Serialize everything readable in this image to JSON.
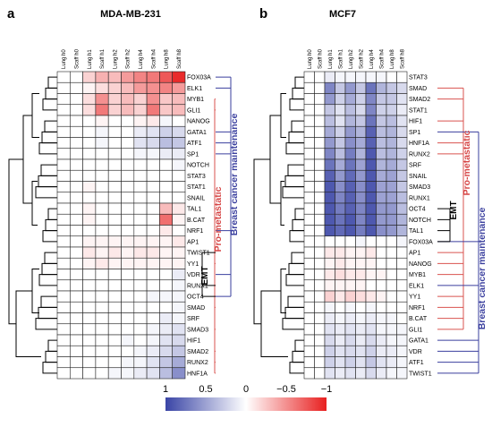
{
  "panels": {
    "a": {
      "letter": "a",
      "title": "MDA-MB-231"
    },
    "b": {
      "letter": "b",
      "title": "MCF7"
    }
  },
  "annotations": {
    "pro_metastatic": "Pro-metastatic",
    "breast_cancer_maintenance": "Breast cancer maintenance",
    "emt": "EMT"
  },
  "colors": {
    "positive": "#3a45a6",
    "neutral": "#ffffff",
    "negative": "#e82020",
    "line_red": "#d9534f",
    "line_blue": "#3a3f9e"
  },
  "colorbar": {
    "ticks": [
      "1",
      "0.5",
      "0",
      "−0.5",
      "−1"
    ],
    "vmin": -1,
    "vmax": 1
  },
  "chart_data": [
    {
      "type": "heatmap",
      "title": "MDA-MB-231",
      "columns": [
        "Lung h0",
        "Scaff h0",
        "Lung h1",
        "Scaff h1",
        "Lung h2",
        "Scaff h2",
        "Lung h4",
        "Scaff h4",
        "Lung h8",
        "Scaff h8"
      ],
      "rows": [
        "FOX03A",
        "ELK1",
        "MYB1",
        "GLI1",
        "NANOG",
        "GATA1",
        "ATF1",
        "SP1",
        "NOTCH",
        "STAT3",
        "STAT1",
        "SNAIL",
        "TAL1",
        "B.CAT",
        "NRF1",
        "AP1",
        "TWIST1",
        "YY1",
        "VDR",
        "RUNX1",
        "OCT4",
        "SMAD",
        "SRF",
        "SMAD3",
        "HIF1",
        "SMAD2",
        "RUNX2",
        "HNF1A"
      ],
      "values": [
        [
          0,
          0,
          -0.2,
          -0.35,
          -0.3,
          -0.45,
          -0.55,
          -0.6,
          -0.75,
          -0.95
        ],
        [
          0,
          0,
          -0.05,
          -0.15,
          -0.2,
          -0.3,
          -0.45,
          -0.5,
          -0.55,
          -0.45
        ],
        [
          0,
          0,
          -0.15,
          -0.5,
          -0.2,
          -0.3,
          -0.2,
          -0.5,
          -0.25,
          -0.3
        ],
        [
          0,
          0,
          -0.15,
          -0.6,
          -0.2,
          -0.3,
          -0.2,
          -0.6,
          -0.25,
          -0.3
        ],
        [
          0,
          0,
          0,
          -0.05,
          0,
          0,
          -0.05,
          -0.1,
          0.05,
          0
        ],
        [
          0,
          0,
          0,
          0.05,
          0,
          0,
          0.1,
          0.15,
          0.25,
          0.2
        ],
        [
          0,
          0,
          0,
          0.05,
          0,
          0,
          0.15,
          0.2,
          0.35,
          0.3
        ],
        [
          0,
          0,
          0,
          0,
          0,
          0,
          0.05,
          0.05,
          0.1,
          0.1
        ],
        [
          0,
          0,
          0,
          0,
          0,
          0,
          0,
          0,
          0,
          0.05
        ],
        [
          0,
          0,
          0,
          0,
          0,
          0,
          0,
          0,
          0,
          0
        ],
        [
          0,
          0,
          -0.05,
          0,
          0,
          0,
          0,
          0,
          0,
          0
        ],
        [
          0,
          0,
          0,
          0,
          0,
          0,
          0,
          0,
          0,
          0
        ],
        [
          0,
          0,
          -0.05,
          0,
          0,
          0,
          0,
          0,
          -0.3,
          -0.1
        ],
        [
          0,
          0,
          -0.05,
          0,
          0,
          0,
          0,
          0,
          -0.65,
          -0.05
        ],
        [
          0,
          0,
          0,
          0,
          0,
          0,
          0,
          0,
          -0.1,
          0
        ],
        [
          0,
          0,
          -0.05,
          -0.05,
          -0.05,
          -0.05,
          -0.05,
          -0.05,
          -0.05,
          -0.1
        ],
        [
          0,
          0,
          -0.1,
          -0.05,
          -0.1,
          -0.05,
          -0.1,
          -0.1,
          -0.05,
          -0.05
        ],
        [
          0,
          0,
          -0.05,
          -0.1,
          -0.05,
          -0.05,
          -0.05,
          -0.05,
          -0.05,
          -0.05
        ],
        [
          0,
          0,
          0,
          0,
          0,
          0,
          0,
          0,
          0,
          0.1
        ],
        [
          0,
          0,
          0,
          0,
          0,
          0,
          0,
          0,
          0,
          0.05
        ],
        [
          0,
          0,
          0,
          0,
          0,
          0,
          0,
          0.05,
          0.05,
          0.05
        ],
        [
          0,
          0,
          0,
          0,
          0,
          0,
          0,
          0,
          0,
          0.05
        ],
        [
          0,
          0,
          0,
          0,
          0,
          0,
          0,
          0,
          0.1,
          0.05
        ],
        [
          0,
          0,
          0,
          0,
          0,
          0,
          0,
          0.05,
          0.1,
          0.15
        ],
        [
          0,
          0,
          0,
          0,
          0,
          0.05,
          0,
          0.05,
          0.15,
          0.2
        ],
        [
          0,
          0,
          0,
          0,
          0,
          0,
          0.05,
          0.1,
          0.2,
          0.3
        ],
        [
          0,
          0,
          0,
          0,
          0,
          0.05,
          0.05,
          0.15,
          0.3,
          0.45
        ],
        [
          0,
          0,
          0,
          0,
          0.05,
          0.05,
          0.1,
          0.15,
          0.35,
          0.6
        ]
      ]
    },
    {
      "type": "heatmap",
      "title": "MCF7",
      "columns": [
        "Lung h0",
        "Scaff h0",
        "Lung h1",
        "Scaff h1",
        "Lung h2",
        "Scaff h2",
        "Lung h4",
        "Scaff h4",
        "Lung h8",
        "Scaff h8"
      ],
      "rows": [
        "STAT3",
        "SMAD",
        "SMAD2",
        "STAT1",
        "HIF1",
        "SP1",
        "HNF1A",
        "RUNX2",
        "SRF",
        "SNAIL",
        "SMAD3",
        "RUNX1",
        "OCT4",
        "NOTCH",
        "TAL1",
        "FOX03A",
        "AP1",
        "NANOG",
        "MYB1",
        "ELK1",
        "YY1",
        "NRF1",
        "B.CAT",
        "GLI1",
        "GATA1",
        "VDR",
        "ATF1",
        "TWIST1"
      ],
      "values": [
        [
          0,
          0,
          0.1,
          0.05,
          0.05,
          0.05,
          0.05,
          0.05,
          0,
          0
        ],
        [
          0,
          0,
          0.65,
          0.3,
          0.55,
          0.3,
          0.75,
          0.4,
          0.3,
          0.2
        ],
        [
          0,
          0,
          0.55,
          0.25,
          0.45,
          0.25,
          0.65,
          0.3,
          0.3,
          0.15
        ],
        [
          0,
          0,
          0.3,
          0.15,
          0.35,
          0.2,
          0.65,
          0.25,
          0.25,
          0.1
        ],
        [
          0,
          0,
          0.35,
          0.15,
          0.4,
          0.3,
          0.75,
          0.3,
          0.35,
          0.15
        ],
        [
          0,
          0,
          0.45,
          0.25,
          0.55,
          0.4,
          0.85,
          0.35,
          0.4,
          0.2
        ],
        [
          0,
          0,
          0.55,
          0.3,
          0.6,
          0.45,
          0.85,
          0.35,
          0.4,
          0.2
        ],
        [
          0,
          0,
          0.65,
          0.35,
          0.7,
          0.4,
          0.9,
          0.35,
          0.4,
          0.25
        ],
        [
          0,
          0,
          0.75,
          0.45,
          0.75,
          0.5,
          0.9,
          0.4,
          0.45,
          0.3
        ],
        [
          0,
          0,
          0.85,
          0.55,
          0.8,
          0.55,
          0.9,
          0.45,
          0.5,
          0.3
        ],
        [
          0,
          0,
          0.9,
          0.6,
          0.85,
          0.6,
          0.9,
          0.5,
          0.5,
          0.3
        ],
        [
          0,
          0,
          0.9,
          0.65,
          0.85,
          0.6,
          0.9,
          0.5,
          0.5,
          0.35
        ],
        [
          0,
          0,
          0.9,
          0.7,
          0.85,
          0.65,
          0.9,
          0.55,
          0.55,
          0.35
        ],
        [
          0,
          0,
          0.9,
          0.75,
          0.9,
          0.65,
          0.9,
          0.55,
          0.55,
          0.4
        ],
        [
          0,
          0,
          0.9,
          0.8,
          0.9,
          0.7,
          0.9,
          0.6,
          0.55,
          0.4
        ],
        [
          0,
          0,
          0,
          0,
          0,
          0.05,
          0,
          0,
          0,
          0.05
        ],
        [
          0,
          0,
          -0.1,
          -0.1,
          -0.05,
          -0.05,
          -0.1,
          0,
          0,
          0
        ],
        [
          0,
          0,
          -0.05,
          -0.1,
          -0.05,
          -0.05,
          -0.05,
          0,
          0,
          0
        ],
        [
          0,
          0,
          -0.1,
          -0.15,
          -0.1,
          -0.1,
          -0.05,
          -0.05,
          0,
          0
        ],
        [
          0,
          0,
          -0.05,
          -0.05,
          -0.05,
          -0.05,
          0,
          0,
          0,
          0
        ],
        [
          0,
          0,
          -0.2,
          -0.1,
          -0.2,
          -0.15,
          -0.1,
          -0.05,
          0,
          0
        ],
        [
          0,
          0,
          0.05,
          0,
          0.05,
          0,
          0.05,
          0,
          0,
          0
        ],
        [
          0,
          0,
          0.1,
          0.05,
          0.1,
          0.05,
          0.1,
          0.05,
          0.05,
          0
        ],
        [
          0,
          0,
          0.15,
          0.1,
          0.15,
          0.1,
          0.15,
          0.05,
          0.05,
          0.05
        ],
        [
          0,
          0,
          0.2,
          0.1,
          0.2,
          0.1,
          0.2,
          0.1,
          0.05,
          0.05
        ],
        [
          0,
          0,
          0.25,
          0.15,
          0.2,
          0.15,
          0.25,
          0.1,
          0.1,
          0.05
        ],
        [
          0,
          0,
          0.25,
          0.15,
          0.25,
          0.15,
          0.3,
          0.15,
          0.1,
          0.05
        ],
        [
          0,
          0,
          0.15,
          0.1,
          0.15,
          0.1,
          0.2,
          0.1,
          0.05,
          0.05
        ]
      ]
    }
  ]
}
